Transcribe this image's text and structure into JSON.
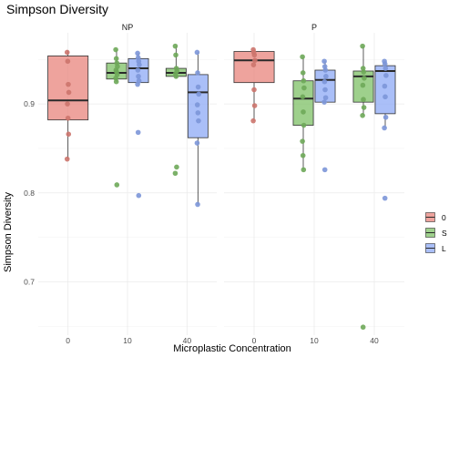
{
  "chart_data": {
    "type": "box",
    "title": "Simpson Diversity",
    "xlabel": "Microplastic Concentration",
    "ylabel": "Simpson Diversity",
    "ylim": [
      0.64,
      0.98
    ],
    "yticks": [
      0.7,
      0.8,
      0.9
    ],
    "grid": true,
    "legend_position": "right",
    "categories": [
      "0",
      "10",
      "40"
    ],
    "fill_groups": [
      {
        "key": "0",
        "color": "#E8847C"
      },
      {
        "key": "S",
        "color": "#7DC065"
      },
      {
        "key": "L",
        "color": "#8DAAF5"
      }
    ],
    "panels": [
      {
        "name": "NP",
        "boxes": [
          {
            "x": "0",
            "group": "0",
            "min": 0.838,
            "q1": 0.882,
            "median": 0.904,
            "q3": 0.954,
            "max": 0.96,
            "points": [
              0.958,
              0.948,
              0.922,
              0.913,
              0.9,
              0.884,
              0.866,
              0.838
            ]
          },
          {
            "x": "10",
            "group": "S",
            "min": 0.925,
            "q1": 0.928,
            "median": 0.935,
            "q3": 0.946,
            "max": 0.961,
            "points": [
              0.961,
              0.951,
              0.946,
              0.942,
              0.938,
              0.936,
              0.933,
              0.929,
              0.925,
              0.809
            ]
          },
          {
            "x": "10",
            "group": "L",
            "min": 0.922,
            "q1": 0.924,
            "median": 0.94,
            "q3": 0.951,
            "max": 0.957,
            "points": [
              0.957,
              0.952,
              0.948,
              0.944,
              0.938,
              0.931,
              0.926,
              0.922,
              0.868,
              0.797
            ]
          },
          {
            "x": "40",
            "group": "S",
            "min": 0.929,
            "q1": 0.931,
            "median": 0.935,
            "q3": 0.94,
            "max": 0.965,
            "points": [
              0.965,
              0.955,
              0.94,
              0.937,
              0.934,
              0.931,
              0.829,
              0.822
            ]
          },
          {
            "x": "40",
            "group": "L",
            "min": 0.787,
            "q1": 0.862,
            "median": 0.913,
            "q3": 0.933,
            "max": 0.958,
            "points": [
              0.958,
              0.935,
              0.919,
              0.911,
              0.899,
              0.89,
              0.881,
              0.856,
              0.787
            ]
          }
        ]
      },
      {
        "name": "P",
        "boxes": [
          {
            "x": "0",
            "group": "0",
            "min": 0.881,
            "q1": 0.924,
            "median": 0.949,
            "q3": 0.959,
            "max": 0.961,
            "points": [
              0.961,
              0.958,
              0.955,
              0.949,
              0.944,
              0.916,
              0.898,
              0.881
            ]
          },
          {
            "x": "10",
            "group": "S",
            "min": 0.826,
            "q1": 0.876,
            "median": 0.906,
            "q3": 0.926,
            "max": 0.953,
            "points": [
              0.953,
              0.935,
              0.926,
              0.918,
              0.908,
              0.891,
              0.876,
              0.858,
              0.842,
              0.826
            ]
          },
          {
            "x": "10",
            "group": "L",
            "min": 0.902,
            "q1": 0.902,
            "median": 0.927,
            "q3": 0.938,
            "max": 0.948,
            "points": [
              0.948,
              0.942,
              0.938,
              0.931,
              0.925,
              0.916,
              0.907,
              0.902,
              0.826
            ]
          },
          {
            "x": "40",
            "group": "S",
            "min": 0.887,
            "q1": 0.902,
            "median": 0.931,
            "q3": 0.937,
            "max": 0.965,
            "points": [
              0.965,
              0.94,
              0.936,
              0.929,
              0.921,
              0.905,
              0.896,
              0.887,
              0.649
            ]
          },
          {
            "x": "40",
            "group": "L",
            "min": 0.873,
            "q1": 0.889,
            "median": 0.937,
            "q3": 0.943,
            "max": 0.948,
            "points": [
              0.948,
              0.945,
              0.94,
              0.932,
              0.92,
              0.908,
              0.885,
              0.873,
              0.794
            ]
          }
        ]
      }
    ]
  }
}
